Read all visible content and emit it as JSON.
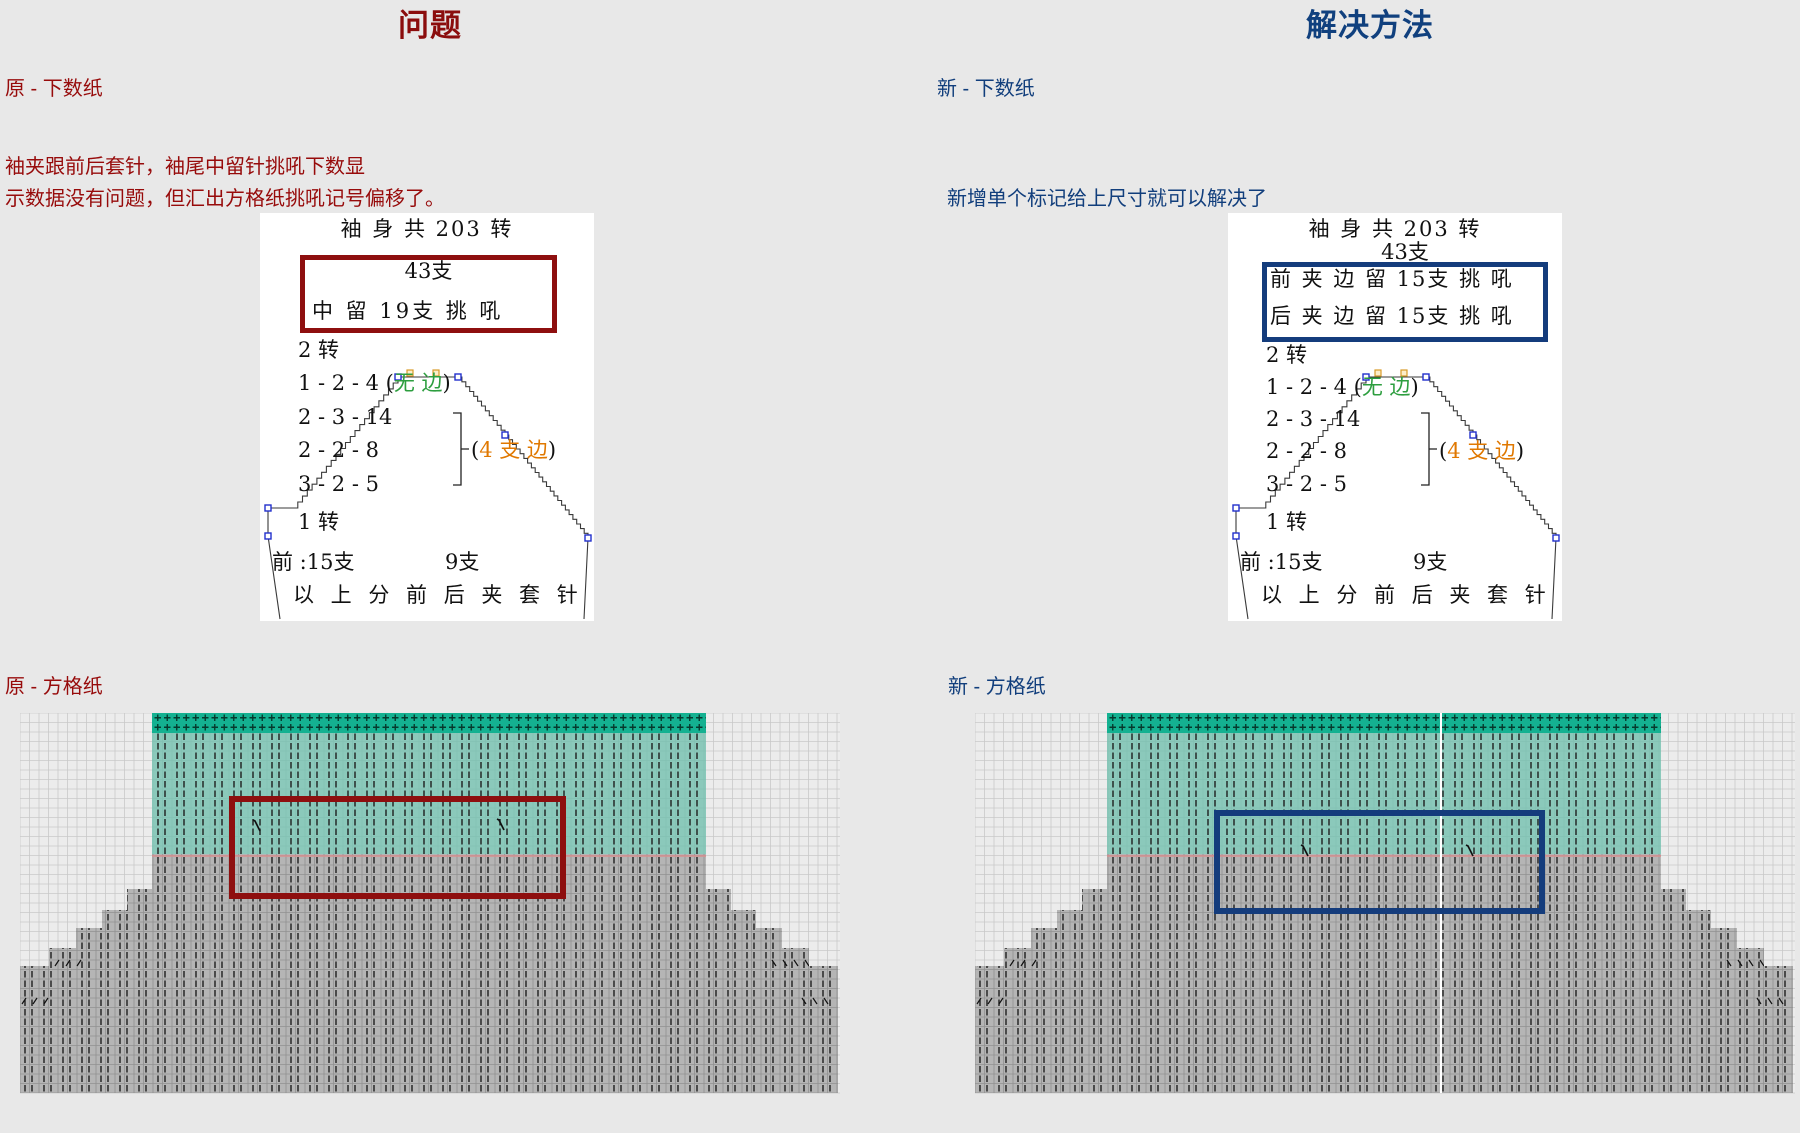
{
  "colors": {
    "problem_red": "#8b0d0d",
    "solution_navy": "#10407e",
    "box_red": "#8e0f0f",
    "box_navy": "#143c7c",
    "green": "#2d9e3f",
    "orange": "#e07800",
    "teal_dark": "#14b191",
    "teal_light": "#7ed0bd",
    "shape_gray": "#b5b5b5",
    "grid_line_light": "#c9c9c9",
    "grid_line_dark": "#919191",
    "stitch_dark": "#1d1d1d",
    "pink_line": "#d98f8f",
    "handle_blue": "#2230cc",
    "panel_white": "#ffffff"
  },
  "left": {
    "title": "问题",
    "section1_label": "原 - 下数纸",
    "desc_line1": "袖夹跟前后套针，袖尾中留针挑吼下数显",
    "desc_line2": "示数据没有问题，但汇出方格纸挑吼记号偏移了。",
    "section2_label": "原 - 方格纸",
    "paper": {
      "header": "袖 身 共 203 转",
      "count": "43支",
      "box_lines": [
        "中 留 19支 挑 吼"
      ],
      "row1": "2 转",
      "row2_pre": "1 - 2 - 4 (",
      "row2_colored": "无 边",
      "row2_post": ")",
      "row3": "2 - 3 - 14",
      "row4": "2 - 2 - 8",
      "row5": "3 - 2 - 5",
      "bracket_pre": "(",
      "bracket_colored": "4 支 边",
      "bracket_post": ")",
      "row6": "1 转",
      "front_label": "前 :15支",
      "front_value": "9支",
      "footer": "以 上 分 前 后 夹 套 针"
    }
  },
  "right": {
    "title": "解决方法",
    "section1_label": "新 - 下数纸",
    "desc_line1": "新增单个标记给上尺寸就可以解决了",
    "section2_label": "新 - 方格纸",
    "paper": {
      "header": "袖 身 共 203 转",
      "count": "43支",
      "box_lines": [
        "前 夹 边 留 15支 挑 吼",
        "后 夹 边 留 15支 挑 吼"
      ],
      "row1": "2 转",
      "row2_pre": "1 - 2 - 4 (",
      "row2_colored": "无 边",
      "row2_post": ")",
      "row3": "2 - 3 - 14",
      "row4": "2 - 2 - 8",
      "row5": "3 - 2 - 5",
      "bracket_pre": "(",
      "bracket_colored": "4 支 边",
      "bracket_post": ")",
      "row6": "1 转",
      "front_label": "前 :15支",
      "front_value": "9支",
      "footer": "以 上 分 前 后 夹 套 针"
    }
  }
}
